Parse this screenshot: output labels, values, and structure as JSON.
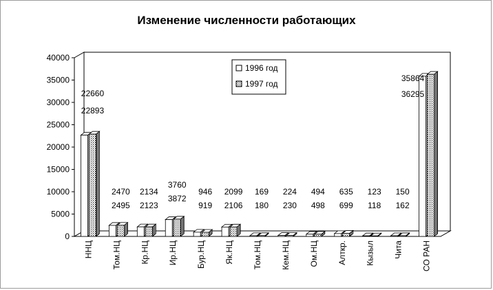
{
  "chart_data": {
    "type": "bar",
    "title": "Изменение численности работающих",
    "categories": [
      "ННЦ",
      "Том.НЦ",
      "Кр.НЦ",
      "Ир.НЦ",
      "Бур.НЦ",
      "Як.НЦ",
      "Том.НЦ",
      "Кем.НЦ",
      "Ом.НЦ",
      "Алткр.",
      "Кызыл",
      "Чита",
      "СО РАН"
    ],
    "series": [
      {
        "name": "1996 год",
        "values": [
          22660,
          2470,
          2134,
          3760,
          946,
          2099,
          169,
          224,
          494,
          635,
          123,
          150,
          35864
        ],
        "pattern": "white"
      },
      {
        "name": "1997 год",
        "values": [
          22893,
          2495,
          2123,
          3872,
          919,
          2106,
          180,
          230,
          498,
          699,
          118,
          162,
          36295
        ],
        "pattern": "dotted"
      }
    ],
    "label_rows": [
      [
        "22660",
        "2470",
        "2134",
        "3760",
        "946",
        "2099",
        "169",
        "224",
        "494",
        "635",
        "123",
        "150",
        "35864"
      ],
      [
        "22893",
        "2495",
        "2123",
        "3872",
        "919",
        "2106",
        "180",
        "230",
        "498",
        "699",
        "118",
        "162",
        "36295"
      ]
    ],
    "yticks": [
      "0",
      "5000",
      "10000",
      "15000",
      "20000",
      "25000",
      "30000",
      "35000",
      "40000"
    ],
    "ylim": [
      0,
      40000
    ],
    "legend": {
      "position": "top-center",
      "entries": [
        "1996 год",
        "1997 год"
      ]
    },
    "grid": false,
    "style": "3d-clustered"
  }
}
